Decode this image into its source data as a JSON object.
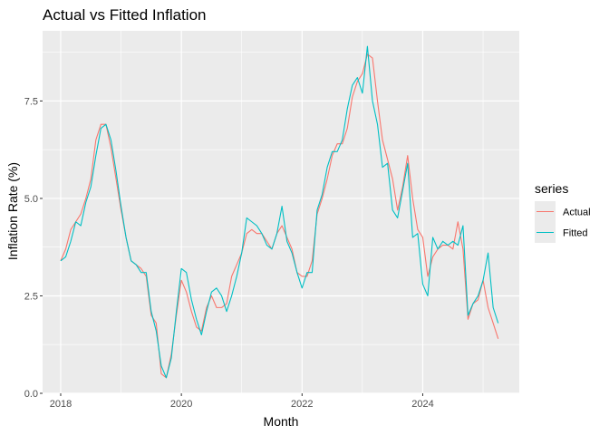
{
  "chart_data": {
    "type": "line",
    "title": "Actual vs Fitted Inflation",
    "xlabel": "Month",
    "ylabel": "Inflation Rate (%)",
    "x_ticks": [
      2018,
      2020,
      2022,
      2024
    ],
    "x_tick_labels": [
      "2018",
      "2020",
      "2022",
      "2024"
    ],
    "y_ticks": [
      0.0,
      2.5,
      5.0,
      7.5
    ],
    "y_tick_labels": [
      "0.0",
      "2.5",
      "5.0",
      "7.5"
    ],
    "xlim": [
      2017.7,
      2025.6
    ],
    "ylim": [
      0,
      9.3
    ],
    "grid": true,
    "legend_title": "series",
    "legend_position": "right",
    "x": [
      2018.0,
      2018.083,
      2018.167,
      2018.25,
      2018.333,
      2018.417,
      2018.5,
      2018.583,
      2018.667,
      2018.75,
      2018.833,
      2018.917,
      2019.0,
      2019.083,
      2019.167,
      2019.25,
      2019.333,
      2019.417,
      2019.5,
      2019.583,
      2019.667,
      2019.75,
      2019.833,
      2019.917,
      2020.0,
      2020.083,
      2020.167,
      2020.25,
      2020.333,
      2020.417,
      2020.5,
      2020.583,
      2020.667,
      2020.75,
      2020.833,
      2020.917,
      2021.0,
      2021.083,
      2021.167,
      2021.25,
      2021.333,
      2021.417,
      2021.5,
      2021.583,
      2021.667,
      2021.75,
      2021.833,
      2021.917,
      2022.0,
      2022.083,
      2022.167,
      2022.25,
      2022.333,
      2022.417,
      2022.5,
      2022.583,
      2022.667,
      2022.75,
      2022.833,
      2022.917,
      2023.0,
      2023.083,
      2023.167,
      2023.25,
      2023.333,
      2023.417,
      2023.5,
      2023.583,
      2023.667,
      2023.75,
      2023.833,
      2023.917,
      2024.0,
      2024.083,
      2024.167,
      2024.25,
      2024.333,
      2024.417,
      2024.5,
      2024.583,
      2024.667,
      2024.75,
      2024.833,
      2024.917,
      2025.0,
      2025.083,
      2025.167,
      2025.25
    ],
    "series": [
      {
        "name": "Actual",
        "color": "#F8766D",
        "values": [
          3.4,
          3.7,
          4.2,
          4.4,
          4.6,
          5.0,
          5.5,
          6.5,
          6.9,
          6.9,
          6.3,
          5.5,
          4.7,
          4.0,
          3.4,
          3.3,
          3.2,
          3.0,
          2.0,
          1.8,
          0.5,
          0.4,
          1.0,
          2.0,
          2.9,
          2.6,
          2.1,
          1.7,
          1.6,
          2.2,
          2.5,
          2.2,
          2.2,
          2.3,
          3.0,
          3.3,
          3.6,
          4.1,
          4.2,
          4.1,
          4.1,
          3.9,
          3.7,
          4.1,
          4.3,
          4.0,
          3.7,
          3.1,
          3.0,
          3.0,
          3.4,
          4.6,
          5.0,
          5.5,
          6.1,
          6.4,
          6.4,
          6.8,
          7.6,
          8.0,
          8.2,
          8.7,
          8.6,
          7.5,
          6.5,
          6.0,
          5.5,
          4.7,
          5.3,
          6.1,
          5.0,
          4.2,
          4.0,
          3.0,
          3.5,
          3.7,
          3.8,
          3.8,
          3.7,
          4.4,
          3.7,
          1.9,
          2.3,
          2.4,
          2.9,
          2.2,
          1.8,
          1.4
        ]
      },
      {
        "name": "Fitted",
        "color": "#00BFC4",
        "values": [
          3.4,
          3.5,
          3.9,
          4.4,
          4.3,
          4.9,
          5.3,
          6.1,
          6.8,
          6.9,
          6.5,
          5.7,
          4.8,
          4.0,
          3.4,
          3.3,
          3.1,
          3.1,
          2.1,
          1.6,
          0.7,
          0.4,
          0.9,
          2.1,
          3.2,
          3.1,
          2.4,
          1.9,
          1.5,
          2.1,
          2.6,
          2.7,
          2.5,
          2.1,
          2.5,
          3.0,
          3.6,
          4.5,
          4.4,
          4.3,
          4.1,
          3.8,
          3.7,
          4.1,
          4.8,
          3.9,
          3.6,
          3.1,
          2.7,
          3.1,
          3.1,
          4.7,
          5.1,
          5.8,
          6.2,
          6.2,
          6.5,
          7.3,
          7.9,
          8.1,
          7.7,
          8.9,
          7.5,
          6.9,
          5.8,
          5.9,
          4.7,
          4.5,
          5.2,
          5.9,
          4.0,
          4.1,
          2.8,
          2.5,
          4.0,
          3.7,
          3.9,
          3.8,
          3.9,
          3.8,
          4.3,
          2.0,
          2.3,
          2.5,
          2.9,
          3.6,
          2.2,
          1.8
        ]
      }
    ]
  }
}
